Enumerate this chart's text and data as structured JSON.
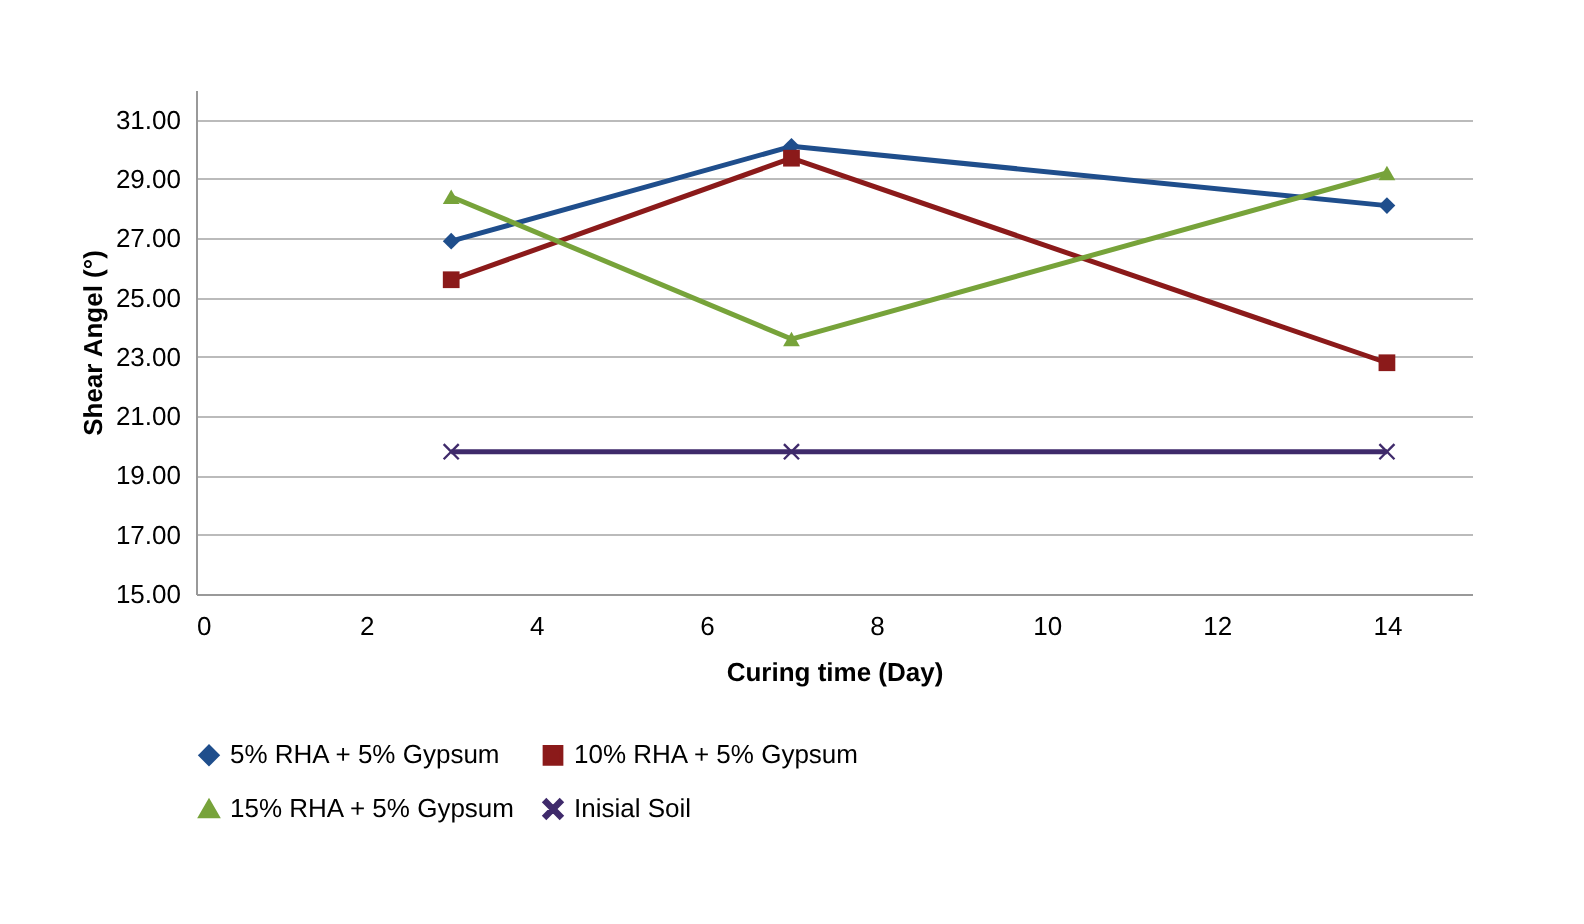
{
  "chart_data": {
    "type": "line",
    "xlabel": "Curing time (Day)",
    "ylabel": "Shear Angel (°)",
    "x": [
      3,
      7,
      14
    ],
    "series": [
      {
        "name": "5% RHA + 5% Gypsum",
        "color": "#1f4e8c",
        "marker": "diamond",
        "values": [
          26.9,
          30.1,
          28.1
        ]
      },
      {
        "name": "10% RHA + 5% Gypsum",
        "color": "#8b1a1a",
        "marker": "square",
        "values": [
          25.6,
          29.7,
          22.8
        ]
      },
      {
        "name": "15% RHA + 5% Gypsum",
        "color": "#77a33a",
        "marker": "triangle",
        "values": [
          28.4,
          23.6,
          29.2
        ]
      },
      {
        "name": "Inisial Soil",
        "color": "#3f2a6b",
        "marker": "cross",
        "values": [
          19.8,
          19.8,
          19.8
        ]
      }
    ],
    "xlim": [
      0,
      15
    ],
    "xticks": [
      0,
      2,
      4,
      6,
      8,
      10,
      12,
      14
    ],
    "ylim": [
      15,
      32
    ],
    "yticks": [
      {
        "value": 15,
        "label": "15.00"
      },
      {
        "value": 17,
        "label": "17.00"
      },
      {
        "value": 19,
        "label": "19.00"
      },
      {
        "value": 21,
        "label": "21.00"
      },
      {
        "value": 23,
        "label": "23.00"
      },
      {
        "value": 25,
        "label": "25.00"
      },
      {
        "value": 27,
        "label": "27.00"
      },
      {
        "value": 29,
        "label": "29.00"
      },
      {
        "value": 31,
        "label": "31.00"
      }
    ],
    "grid": "y",
    "legend": "bottom",
    "line_style": "solid"
  }
}
